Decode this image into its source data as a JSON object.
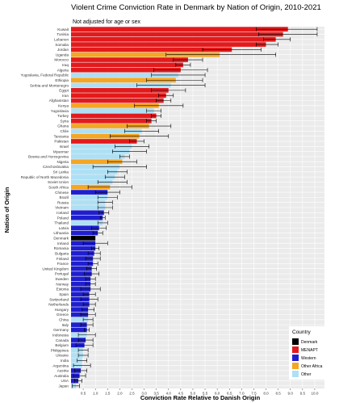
{
  "chart_data": {
    "type": "bar",
    "orientation": "horizontal",
    "title": "Violent Crime Conviction Rate in Denmark by Nation of Origin, 2010-2021",
    "subtitle": "Not adjusted for age or sex",
    "xlabel": "Conviction Rate Relative to Danish Origin",
    "ylabel": "Nation of Origin",
    "xlim": [
      0,
      10.4
    ],
    "x_ticks": [
      "0.5",
      "1.0",
      "1.5",
      "2.0",
      "2.5",
      "3.0",
      "3.5",
      "4.0",
      "4.5",
      "5.0",
      "5.5",
      "6.0",
      "6.5",
      "7.0",
      "7.5",
      "8.0",
      "8.5",
      "9.0",
      "9.5",
      "10.0"
    ],
    "grid": true,
    "error_bars": true,
    "legend": {
      "title": "Country",
      "position": "bottom-right",
      "entries": [
        {
          "label": "Denmark",
          "color": "#000000"
        },
        {
          "label": "MENAPT",
          "color": "#e31a1c"
        },
        {
          "label": "Western",
          "color": "#1f1fcf"
        },
        {
          "label": "Other Africa",
          "color": "#f5a623"
        },
        {
          "label": "Other",
          "color": "#aee0f5"
        }
      ]
    },
    "bars": [
      {
        "country": "Kuwait",
        "group": "MENAPT",
        "value": 8.9,
        "lo": 7.6,
        "hi": 10.1
      },
      {
        "country": "Tunisia",
        "group": "MENAPT",
        "value": 8.7,
        "lo": 7.7,
        "hi": 10.1
      },
      {
        "country": "Lebanon",
        "group": "MENAPT",
        "value": 8.4,
        "lo": 7.9,
        "hi": 9.0
      },
      {
        "country": "Somalia",
        "group": "MENAPT",
        "value": 8.0,
        "lo": 7.6,
        "hi": 8.5
      },
      {
        "country": "Jordan",
        "group": "MENAPT",
        "value": 6.6,
        "lo": 5.4,
        "hi": 7.8
      },
      {
        "country": "Uganda",
        "group": "Other Africa",
        "value": 6.1,
        "lo": 3.9,
        "hi": 8.4
      },
      {
        "country": "Morocco",
        "group": "MENAPT",
        "value": 4.8,
        "lo": 4.2,
        "hi": 5.4
      },
      {
        "country": "Iraq",
        "group": "MENAPT",
        "value": 4.6,
        "lo": 4.3,
        "hi": 4.9
      },
      {
        "country": "Algeria",
        "group": "MENAPT",
        "value": 4.5,
        "lo": 3.4,
        "hi": 5.6
      },
      {
        "country": "Yugoslavia, Federal Republic",
        "group": "Other",
        "value": 4.4,
        "lo": 3.3,
        "hi": 5.5
      },
      {
        "country": "Ethiopia",
        "group": "Other Africa",
        "value": 4.3,
        "lo": 3.1,
        "hi": 5.4
      },
      {
        "country": "Serbia and Montenegro",
        "group": "Other",
        "value": 4.1,
        "lo": 2.7,
        "hi": 5.5
      },
      {
        "country": "Egypt",
        "group": "MENAPT",
        "value": 4.0,
        "lo": 3.3,
        "hi": 4.7
      },
      {
        "country": "Iran",
        "group": "MENAPT",
        "value": 3.9,
        "lo": 3.6,
        "hi": 4.2
      },
      {
        "country": "Afghanistan",
        "group": "MENAPT",
        "value": 3.8,
        "lo": 3.5,
        "hi": 4.1
      },
      {
        "country": "Kenya",
        "group": "Other Africa",
        "value": 3.6,
        "lo": 2.6,
        "hi": 4.6
      },
      {
        "country": "Yugoslavia",
        "group": "Other",
        "value": 3.4,
        "lo": 3.1,
        "hi": 3.7
      },
      {
        "country": "Turkey",
        "group": "MENAPT",
        "value": 3.5,
        "lo": 3.3,
        "hi": 3.7
      },
      {
        "country": "Syria",
        "group": "MENAPT",
        "value": 3.3,
        "lo": 3.1,
        "hi": 3.5
      },
      {
        "country": "Ghana",
        "group": "Other Africa",
        "value": 3.2,
        "lo": 2.3,
        "hi": 4.1
      },
      {
        "country": "Chile",
        "group": "Other",
        "value": 2.9,
        "lo": 2.2,
        "hi": 3.6
      },
      {
        "country": "Tanzania",
        "group": "Other Africa",
        "value": 2.8,
        "lo": 1.6,
        "hi": 4.0
      },
      {
        "country": "Pakistan",
        "group": "MENAPT",
        "value": 2.7,
        "lo": 2.4,
        "hi": 3.0
      },
      {
        "country": "Israel",
        "group": "Other",
        "value": 2.5,
        "lo": 1.8,
        "hi": 3.2
      },
      {
        "country": "Myanmar",
        "group": "Other",
        "value": 2.4,
        "lo": 1.7,
        "hi": 3.1
      },
      {
        "country": "Bosnia and Herzegovina",
        "group": "Other",
        "value": 2.2,
        "lo": 2.0,
        "hi": 2.4
      },
      {
        "country": "Nigeria",
        "group": "Other Africa",
        "value": 2.1,
        "lo": 1.5,
        "hi": 2.7
      },
      {
        "country": "Czechoslovakia",
        "group": "Other",
        "value": 2.0,
        "lo": 0.9,
        "hi": 3.1
      },
      {
        "country": "Sri Lanka",
        "group": "Other",
        "value": 1.9,
        "lo": 1.5,
        "hi": 2.3
      },
      {
        "country": "Republic of North Macedonia",
        "group": "Other",
        "value": 1.8,
        "lo": 1.4,
        "hi": 2.2
      },
      {
        "country": "Soviet Union",
        "group": "Other",
        "value": 1.7,
        "lo": 1.1,
        "hi": 2.3
      },
      {
        "country": "South Africa",
        "group": "Other Africa",
        "value": 1.6,
        "lo": 0.7,
        "hi": 2.5
      },
      {
        "country": "Chinese",
        "group": "Western",
        "value": 1.5,
        "lo": 1.0,
        "hi": 2.0
      },
      {
        "country": "Brazil",
        "group": "Other",
        "value": 1.5,
        "lo": 1.1,
        "hi": 1.9
      },
      {
        "country": "Russia",
        "group": "Other",
        "value": 1.4,
        "lo": 1.1,
        "hi": 1.7
      },
      {
        "country": "Vietnam",
        "group": "Other",
        "value": 1.4,
        "lo": 1.1,
        "hi": 1.7
      },
      {
        "country": "Iceland",
        "group": "Western",
        "value": 1.35,
        "lo": 1.15,
        "hi": 1.55
      },
      {
        "country": "Poland",
        "group": "Western",
        "value": 1.3,
        "lo": 1.2,
        "hi": 1.4
      },
      {
        "country": "Thailand",
        "group": "Other",
        "value": 1.3,
        "lo": 1.1,
        "hi": 1.5
      },
      {
        "country": "Latvia",
        "group": "Western",
        "value": 1.15,
        "lo": 0.85,
        "hi": 1.45
      },
      {
        "country": "Lithuania",
        "group": "Western",
        "value": 1.1,
        "lo": 0.9,
        "hi": 1.3
      },
      {
        "country": "Denmark",
        "group": "Denmark",
        "value": 1.0,
        "lo": 1.0,
        "hi": 1.0
      },
      {
        "country": "Ireland",
        "group": "Western",
        "value": 1.0,
        "lo": 0.5,
        "hi": 1.5
      },
      {
        "country": "Romania",
        "group": "Western",
        "value": 1.0,
        "lo": 0.85,
        "hi": 1.15
      },
      {
        "country": "Bulgaria",
        "group": "Western",
        "value": 0.95,
        "lo": 0.7,
        "hi": 1.2
      },
      {
        "country": "Finland",
        "group": "Western",
        "value": 0.9,
        "lo": 0.6,
        "hi": 1.2
      },
      {
        "country": "France",
        "group": "Western",
        "value": 0.9,
        "lo": 0.7,
        "hi": 1.1
      },
      {
        "country": "United Kingdom",
        "group": "Western",
        "value": 0.85,
        "lo": 0.65,
        "hi": 1.05
      },
      {
        "country": "Portugal",
        "group": "Western",
        "value": 0.85,
        "lo": 0.55,
        "hi": 1.15
      },
      {
        "country": "Sweden",
        "group": "Western",
        "value": 0.8,
        "lo": 0.6,
        "hi": 1.0
      },
      {
        "country": "Norway",
        "group": "Western",
        "value": 0.8,
        "lo": 0.6,
        "hi": 1.0
      },
      {
        "country": "Estonia",
        "group": "Western",
        "value": 0.8,
        "lo": 0.4,
        "hi": 1.2
      },
      {
        "country": "Spain",
        "group": "Western",
        "value": 0.75,
        "lo": 0.5,
        "hi": 1.0
      },
      {
        "country": "Switzerland",
        "group": "Western",
        "value": 0.75,
        "lo": 0.4,
        "hi": 1.1
      },
      {
        "country": "Netherlands",
        "group": "Western",
        "value": 0.75,
        "lo": 0.5,
        "hi": 1.0
      },
      {
        "country": "Hungary",
        "group": "Western",
        "value": 0.7,
        "lo": 0.45,
        "hi": 0.95
      },
      {
        "country": "Greece",
        "group": "Western",
        "value": 0.7,
        "lo": 0.4,
        "hi": 1.0
      },
      {
        "country": "China",
        "group": "Other",
        "value": 0.7,
        "lo": 0.5,
        "hi": 0.9
      },
      {
        "country": "Italy",
        "group": "Western",
        "value": 0.65,
        "lo": 0.4,
        "hi": 0.9
      },
      {
        "country": "Germany",
        "group": "Western",
        "value": 0.65,
        "lo": 0.55,
        "hi": 0.75
      },
      {
        "country": "Indonesia",
        "group": "Other",
        "value": 0.65,
        "lo": 0.3,
        "hi": 1.0
      },
      {
        "country": "Canada",
        "group": "Western",
        "value": 0.6,
        "lo": 0.3,
        "hi": 0.9
      },
      {
        "country": "Belgium",
        "group": "Western",
        "value": 0.55,
        "lo": 0.2,
        "hi": 0.9
      },
      {
        "country": "Philippines",
        "group": "Other",
        "value": 0.5,
        "lo": 0.3,
        "hi": 0.7
      },
      {
        "country": "Ukraine",
        "group": "Other",
        "value": 0.5,
        "lo": 0.3,
        "hi": 0.7
      },
      {
        "country": "India",
        "group": "Other",
        "value": 0.45,
        "lo": 0.25,
        "hi": 0.65
      },
      {
        "country": "Argentina",
        "group": "Other",
        "value": 0.45,
        "lo": 0.1,
        "hi": 0.8
      },
      {
        "country": "Austria",
        "group": "Western",
        "value": 0.4,
        "lo": 0.15,
        "hi": 0.65
      },
      {
        "country": "Australia",
        "group": "Western",
        "value": 0.35,
        "lo": 0.1,
        "hi": 0.6
      },
      {
        "country": "USA",
        "group": "Western",
        "value": 0.3,
        "lo": 0.15,
        "hi": 0.45
      },
      {
        "country": "Japan",
        "group": "Other",
        "value": 0.2,
        "lo": 0.05,
        "hi": 0.35
      }
    ]
  }
}
